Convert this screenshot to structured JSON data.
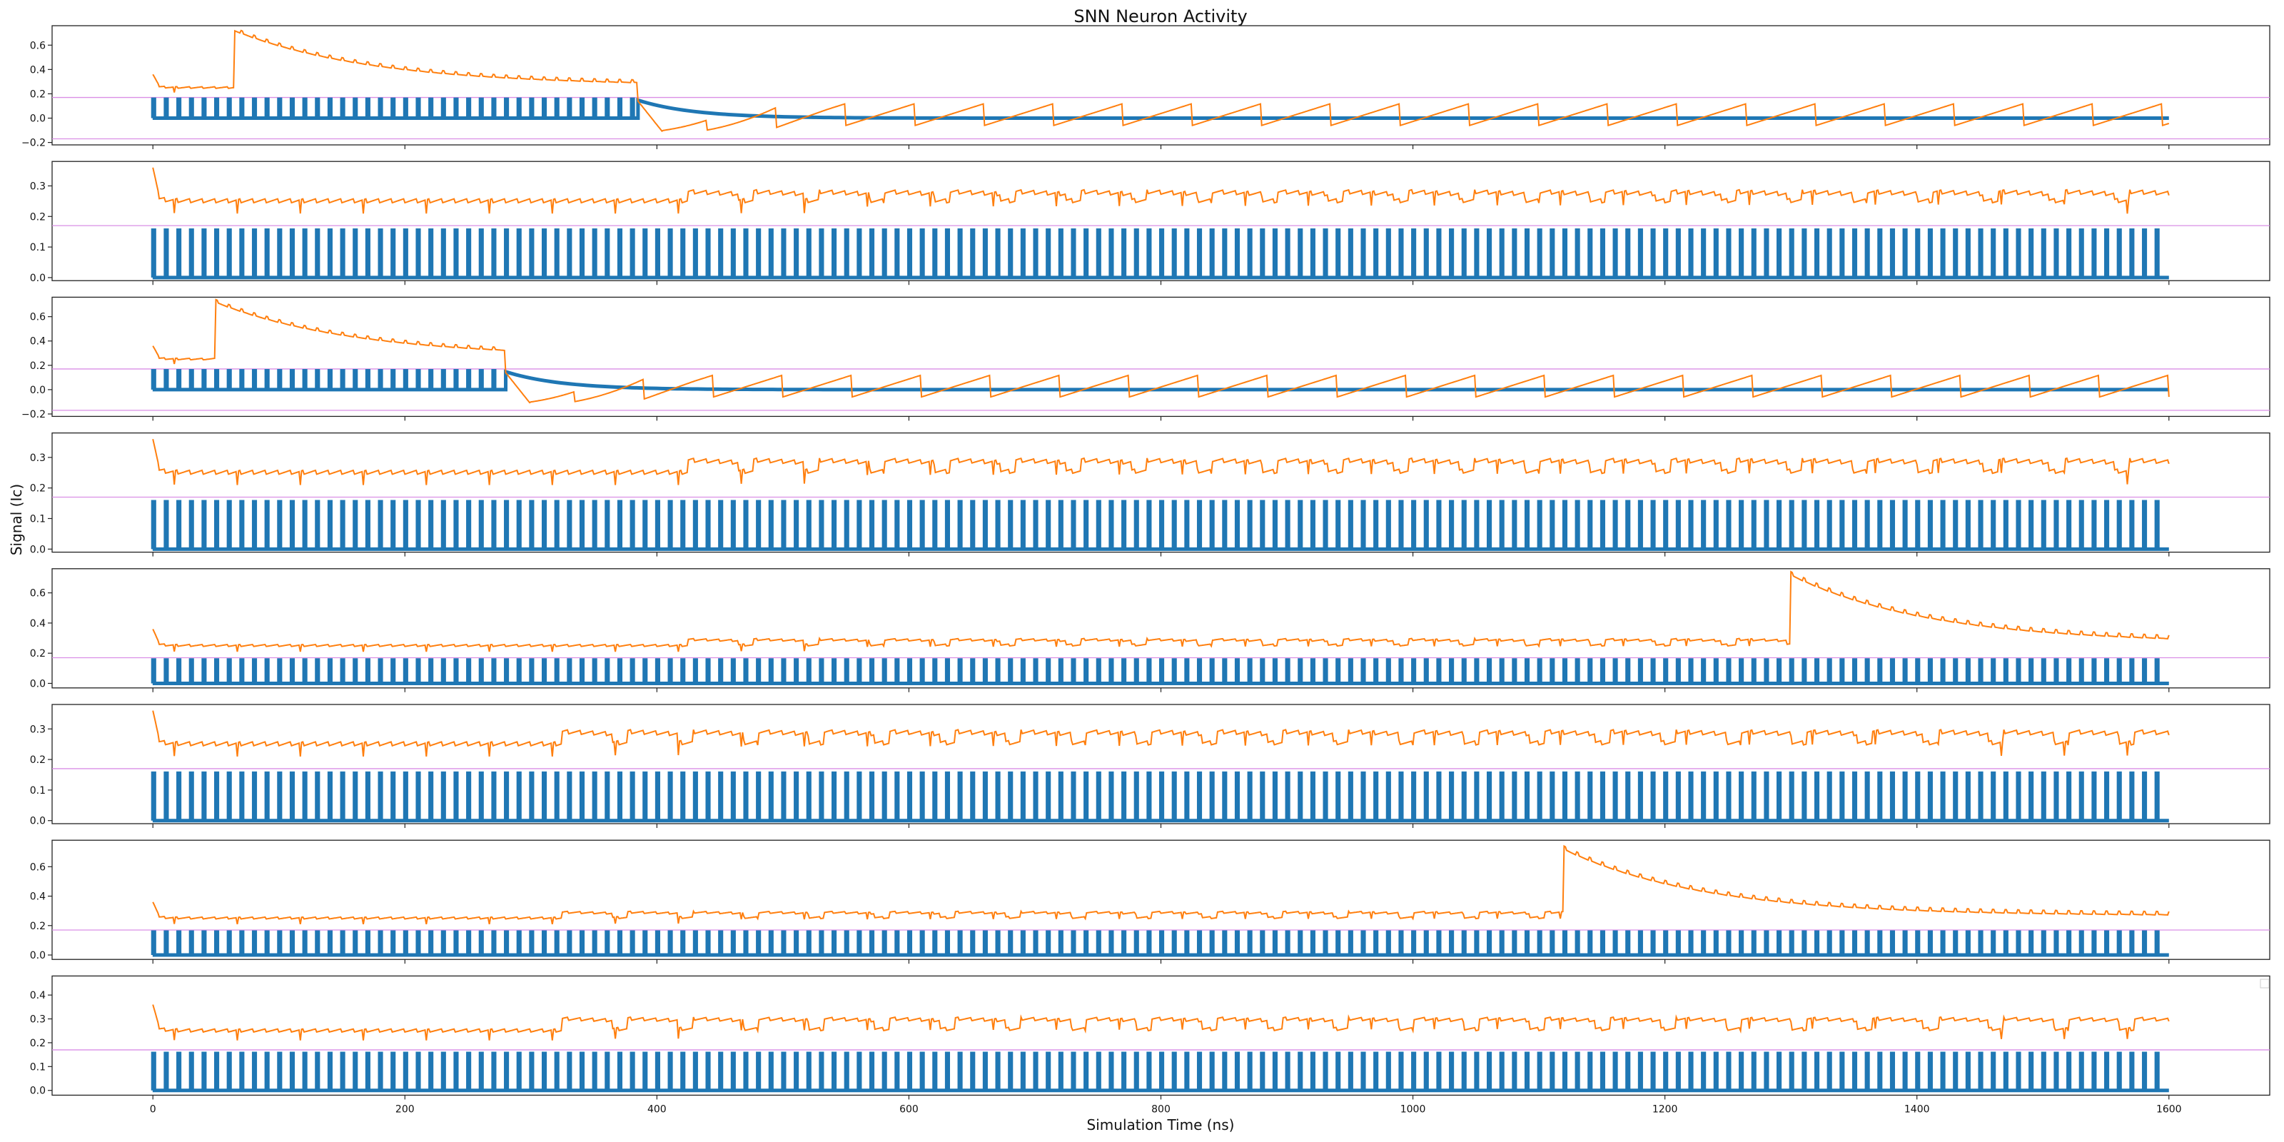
{
  "chart_data": {
    "type": "line",
    "title": "SNN Neuron Activity",
    "xlabel": "Simulation Time (ns)",
    "ylabel": "Signal (Ic)",
    "xlim": [
      -80,
      1680
    ],
    "xticks": [
      0,
      200,
      400,
      600,
      800,
      1000,
      1200,
      1400,
      1600
    ],
    "threshold": 0.17,
    "colors": {
      "signal": "#ff7f0e",
      "pulses": "#1f77b4",
      "threshold": "#da8fe6"
    },
    "legend": {
      "placement": "upper-right",
      "entries": []
    },
    "grid": false,
    "panels": [
      {
        "ylim": [
          -0.22,
          0.76
        ],
        "yticks": [
          -0.2,
          0.0,
          0.2,
          0.4,
          0.6
        ],
        "tick_labels": [
          "−0.2",
          "0.0",
          "0.2",
          "0.4",
          "0.6"
        ],
        "show_lower_threshold": true,
        "saturate_t": 65,
        "pulse_stop_t": 385,
        "shift_t": null,
        "shift_amount": 0
      },
      {
        "ylim": [
          -0.01,
          0.38
        ],
        "yticks": [
          0.0,
          0.1,
          0.2,
          0.3
        ],
        "tick_labels": [
          "0.0",
          "0.1",
          "0.2",
          "0.3"
        ],
        "show_lower_threshold": false,
        "saturate_t": null,
        "pulse_stop_t": null,
        "shift_t": 425,
        "shift_amount": 0.03
      },
      {
        "ylim": [
          -0.22,
          0.76
        ],
        "yticks": [
          -0.2,
          0.0,
          0.2,
          0.4,
          0.6
        ],
        "tick_labels": [
          "−0.2",
          "0.0",
          "0.2",
          "0.4",
          "0.6"
        ],
        "show_lower_threshold": true,
        "saturate_t": 50,
        "pulse_stop_t": 280,
        "shift_t": null,
        "shift_amount": 0
      },
      {
        "ylim": [
          -0.01,
          0.38
        ],
        "yticks": [
          0.0,
          0.1,
          0.2,
          0.3
        ],
        "tick_labels": [
          "0.0",
          "0.1",
          "0.2",
          "0.3"
        ],
        "show_lower_threshold": false,
        "saturate_t": null,
        "pulse_stop_t": null,
        "shift_t": 425,
        "shift_amount": 0.04
      },
      {
        "ylim": [
          -0.03,
          0.76
        ],
        "yticks": [
          0.0,
          0.2,
          0.4,
          0.6
        ],
        "tick_labels": [
          "0.0",
          "0.2",
          "0.4",
          "0.6"
        ],
        "show_lower_threshold": false,
        "saturate_t": 1300,
        "pulse_stop_t": null,
        "shift_t": 425,
        "shift_amount": 0.04
      },
      {
        "ylim": [
          -0.01,
          0.38
        ],
        "yticks": [
          0.0,
          0.1,
          0.2,
          0.3
        ],
        "tick_labels": [
          "0.0",
          "0.1",
          "0.2",
          "0.3"
        ],
        "show_lower_threshold": false,
        "saturate_t": null,
        "pulse_stop_t": null,
        "shift_t": 325,
        "shift_amount": 0.04
      },
      {
        "ylim": [
          -0.03,
          0.78
        ],
        "yticks": [
          0.0,
          0.2,
          0.4,
          0.6
        ],
        "tick_labels": [
          "0.0",
          "0.2",
          "0.4",
          "0.6"
        ],
        "show_lower_threshold": false,
        "saturate_t": 1120,
        "pulse_stop_t": null,
        "shift_t": 325,
        "shift_amount": 0.04
      },
      {
        "ylim": [
          -0.02,
          0.48
        ],
        "yticks": [
          0.0,
          0.1,
          0.2,
          0.3,
          0.4
        ],
        "tick_labels": [
          "0.0",
          "0.1",
          "0.2",
          "0.3",
          "0.4"
        ],
        "show_lower_threshold": false,
        "saturate_t": null,
        "pulse_stop_t": null,
        "shift_t": 325,
        "shift_amount": 0.05
      }
    ]
  }
}
